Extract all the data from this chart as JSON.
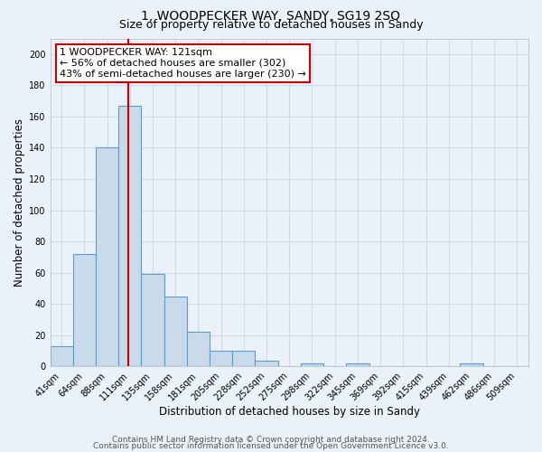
{
  "title": "1, WOODPECKER WAY, SANDY, SG19 2SQ",
  "subtitle": "Size of property relative to detached houses in Sandy",
  "xlabel": "Distribution of detached houses by size in Sandy",
  "ylabel": "Number of detached properties",
  "bin_labels": [
    "41sqm",
    "64sqm",
    "88sqm",
    "111sqm",
    "135sqm",
    "158sqm",
    "181sqm",
    "205sqm",
    "228sqm",
    "252sqm",
    "275sqm",
    "298sqm",
    "322sqm",
    "345sqm",
    "369sqm",
    "392sqm",
    "415sqm",
    "439sqm",
    "462sqm",
    "486sqm",
    "509sqm"
  ],
  "bin_values": [
    13,
    72,
    140,
    167,
    59,
    45,
    22,
    10,
    10,
    4,
    0,
    2,
    0,
    2,
    0,
    0,
    0,
    0,
    2,
    0,
    0
  ],
  "bar_color": "#c9daea",
  "bar_edge_color": "#5b9bd5",
  "vline_color": "#cc0000",
  "bin_edges_sqm": [
    41,
    64,
    88,
    111,
    135,
    158,
    181,
    205,
    228,
    252,
    275,
    298,
    322,
    345,
    369,
    392,
    415,
    439,
    462,
    486,
    509
  ],
  "property_sqm": 121,
  "annotation_line1": "1 WOODPECKER WAY: 121sqm",
  "annotation_line2": "← 56% of detached houses are smaller (302)",
  "annotation_line3": "43% of semi-detached houses are larger (230) →",
  "annotation_box_color": "#ffffff",
  "annotation_box_edge": "#cc0000",
  "ylim": [
    0,
    210
  ],
  "yticks": [
    0,
    20,
    40,
    60,
    80,
    100,
    120,
    140,
    160,
    180,
    200
  ],
  "footer1": "Contains HM Land Registry data © Crown copyright and database right 2024.",
  "footer2": "Contains public sector information licensed under the Open Government Licence v3.0.",
  "background_color": "#eaf1f8",
  "plot_bg_color": "#eaf1f8",
  "grid_color": "#d0dce8",
  "title_fontsize": 10,
  "subtitle_fontsize": 9,
  "axis_label_fontsize": 8.5,
  "tick_fontsize": 7,
  "annotation_fontsize": 8,
  "footer_fontsize": 6.5
}
